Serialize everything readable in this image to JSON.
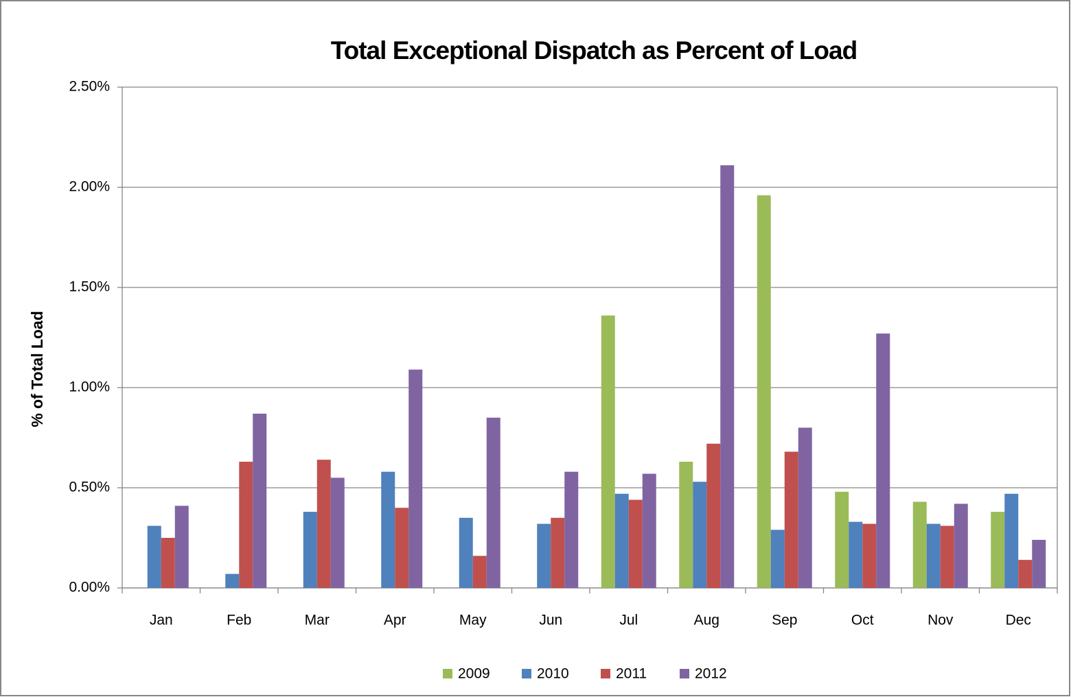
{
  "chart_data": {
    "type": "bar",
    "title": "Total Exceptional Dispatch as Percent of Load",
    "y_label": "% of Total Load",
    "categories": [
      "Jan",
      "Feb",
      "Mar",
      "Apr",
      "May",
      "Jun",
      "Jul",
      "Aug",
      "Sep",
      "Oct",
      "Nov",
      "Dec"
    ],
    "series": [
      {
        "name": "2009",
        "color": "#9bbb59",
        "values": [
          null,
          null,
          null,
          null,
          null,
          null,
          1.36,
          0.63,
          1.96,
          0.48,
          0.43,
          0.38
        ]
      },
      {
        "name": "2010",
        "color": "#4f81bd",
        "values": [
          0.31,
          0.07,
          0.38,
          0.58,
          0.35,
          0.32,
          0.47,
          0.53,
          0.29,
          0.33,
          0.32,
          0.47
        ]
      },
      {
        "name": "2011",
        "color": "#c0504d",
        "values": [
          0.25,
          0.63,
          0.64,
          0.4,
          0.16,
          0.35,
          0.44,
          0.72,
          0.68,
          0.32,
          0.31,
          0.14
        ]
      },
      {
        "name": "2012",
        "color": "#8064a2",
        "values": [
          0.41,
          0.87,
          0.55,
          1.09,
          0.85,
          0.58,
          0.57,
          2.11,
          0.8,
          1.27,
          0.42,
          0.24
        ]
      }
    ],
    "ylim": [
      0,
      2.5
    ],
    "yticks": [
      {
        "value": 0,
        "label": "0.00%"
      },
      {
        "value": 0.5,
        "label": "0.50%"
      },
      {
        "value": 1,
        "label": "1.00%"
      },
      {
        "value": 1.5,
        "label": "1.50%"
      },
      {
        "value": 2,
        "label": "2.00%"
      },
      {
        "value": 2.5,
        "label": "2.50%"
      }
    ],
    "grid": true,
    "legend": "bottom"
  }
}
